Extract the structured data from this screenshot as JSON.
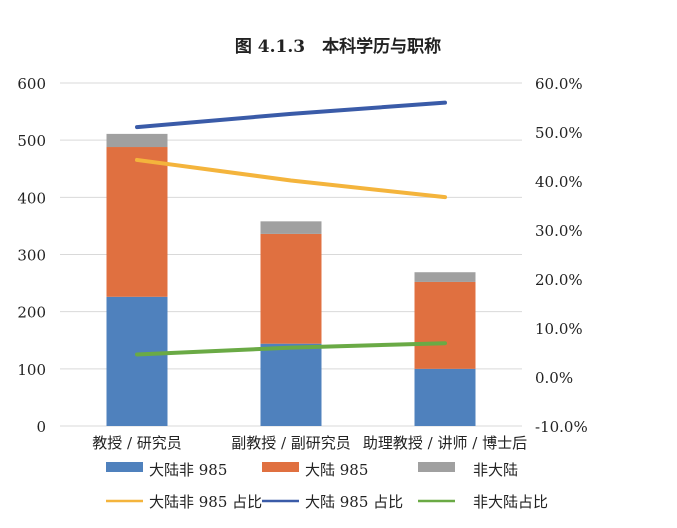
{
  "chart_data": {
    "type": "bar",
    "stacked": true,
    "title": "图 4.1.3　本科学历与职称",
    "categories": [
      "教授 / 研究员",
      "副教授 / 副研究员",
      "助理教授 / 讲师 / 博士后"
    ],
    "series": [
      {
        "name": "大陆非 985",
        "kind": "bar",
        "axis": "left",
        "color": "#4f81bd",
        "values": [
          226,
          144,
          100
        ]
      },
      {
        "name": "大陆 985",
        "kind": "bar",
        "axis": "left",
        "color": "#e07040",
        "values": [
          262,
          192,
          152
        ]
      },
      {
        "name": "非大陆",
        "kind": "bar",
        "axis": "left",
        "color": "#a0a0a0",
        "values": [
          23,
          22,
          17
        ]
      },
      {
        "name": "大陆非 985 占比",
        "kind": "line",
        "axis": "right",
        "color": "#f4b43c",
        "values": [
          44.3,
          40.1,
          36.7
        ]
      },
      {
        "name": "大陆 985 占比",
        "kind": "line",
        "axis": "right",
        "color": "#3a5ba8",
        "values": [
          51.0,
          53.7,
          56.0
        ]
      },
      {
        "name": "非大陆占比",
        "kind": "line",
        "axis": "right",
        "color": "#6aaa45",
        "values": [
          4.6,
          6.0,
          6.9
        ]
      }
    ],
    "ylim": [
      0,
      600
    ],
    "yticks": [
      "0",
      "100",
      "200",
      "300",
      "400",
      "500",
      "600"
    ],
    "y2lim": [
      -10,
      60
    ],
    "y2ticks": [
      "-10.0%",
      "0.0%",
      "10.0%",
      "20.0%",
      "30.0%",
      "40.0%",
      "50.0%",
      "60.0%"
    ],
    "grid": true,
    "legend": "bottom"
  }
}
